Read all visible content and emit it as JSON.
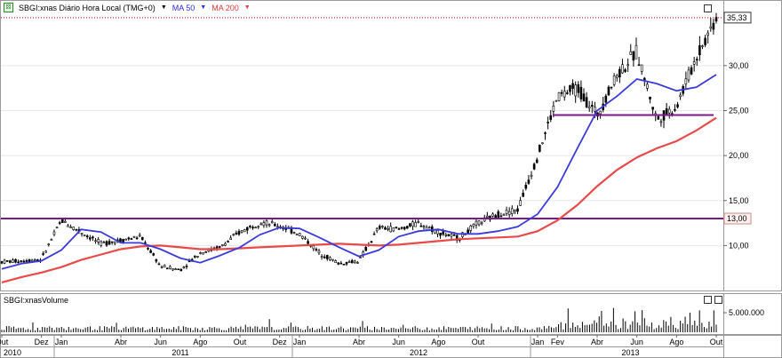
{
  "legend": {
    "symbol": "SBGI:xnas Diário Hora Local (TMG+0)",
    "ma50": "MA 50",
    "ma200": "MA 200",
    "symbol_color": "#000000",
    "ma50_color": "#2b2bdb",
    "ma200_color": "#e03a3a"
  },
  "volume_panel": {
    "title": "SBGI:xnasVolume",
    "tick_label": "5.000.000"
  },
  "price_axis": {
    "ticks": [
      "35,33",
      "30,00",
      "25,00",
      "20,00",
      "15,00",
      "13,00",
      "10,00"
    ],
    "last_price": "35,33",
    "level_label": "13,00"
  },
  "time_axis": {
    "months": [
      "Out",
      "Dez",
      "Jan",
      "Abr",
      "Jun",
      "Ago",
      "Out",
      "Dez",
      "Jan",
      "Abr",
      "Jun",
      "Ago",
      "Out",
      "Jan",
      "Fev",
      "Abr",
      "Jun",
      "Ago",
      "Out"
    ],
    "years": [
      "2010",
      "2011",
      "2012",
      "2013"
    ]
  },
  "colors": {
    "ma50": "#3b3bdb",
    "ma200": "#e84a4a",
    "support_line": "#7a1a8a",
    "candle": "#000000",
    "last_price_line": "#cc0000"
  },
  "chart_data": {
    "type": "line",
    "title": "SBGI:xnas Diário Hora Local (TMG+0)",
    "xlabel": "",
    "ylabel": "",
    "ylim": [
      5.5,
      36.5
    ],
    "x": [
      "2010-10",
      "2010-11",
      "2010-12",
      "2011-01",
      "2011-02",
      "2011-03",
      "2011-04",
      "2011-05",
      "2011-06",
      "2011-07",
      "2011-08",
      "2011-09",
      "2011-10",
      "2011-11",
      "2011-12",
      "2012-01",
      "2012-02",
      "2012-03",
      "2012-04",
      "2012-05",
      "2012-06",
      "2012-07",
      "2012-08",
      "2012-09",
      "2012-10",
      "2012-11",
      "2012-12",
      "2013-01",
      "2013-02",
      "2013-03",
      "2013-04",
      "2013-05",
      "2013-06",
      "2013-07",
      "2013-08",
      "2013-09",
      "2013-10"
    ],
    "series": [
      {
        "name": "SBGI:xnas",
        "values": [
          8.2,
          8.3,
          8.5,
          12.8,
          11.5,
          10.2,
          10.6,
          11.0,
          7.7,
          7.3,
          9.2,
          9.8,
          11.5,
          12.6,
          12.2,
          11.3,
          9.2,
          8.0,
          8.3,
          12.0,
          11.8,
          12.5,
          11.5,
          10.8,
          12.5,
          13.5,
          14.0,
          20.0,
          26.5,
          27.5,
          24.5,
          29.0,
          31.5,
          24.0,
          25.5,
          31.0,
          35.33
        ]
      },
      {
        "name": "MA 50",
        "values": [
          7.4,
          8.0,
          8.3,
          9.5,
          11.8,
          11.5,
          10.3,
          10.3,
          9.6,
          8.6,
          8.1,
          8.9,
          9.8,
          11.2,
          12.0,
          11.9,
          10.9,
          9.8,
          8.8,
          9.5,
          11.0,
          11.6,
          11.8,
          11.3,
          11.3,
          11.6,
          12.1,
          13.5,
          16.5,
          20.8,
          25.0,
          26.6,
          28.5,
          28.0,
          27.2,
          27.6,
          29.0
        ]
      },
      {
        "name": "MA 200",
        "values": [
          5.9,
          6.5,
          7.0,
          7.6,
          8.4,
          9.0,
          9.6,
          9.9,
          10.0,
          9.8,
          9.6,
          9.6,
          9.7,
          9.8,
          9.9,
          10.0,
          10.1,
          10.2,
          10.1,
          10.0,
          10.1,
          10.3,
          10.5,
          10.7,
          10.8,
          10.9,
          11.0,
          11.6,
          12.8,
          14.5,
          16.6,
          18.4,
          19.8,
          20.8,
          21.6,
          22.8,
          24.2
        ]
      }
    ],
    "hlines": [
      13.0,
      24.5
    ],
    "volume": {
      "max_tick": 5000000
    }
  }
}
